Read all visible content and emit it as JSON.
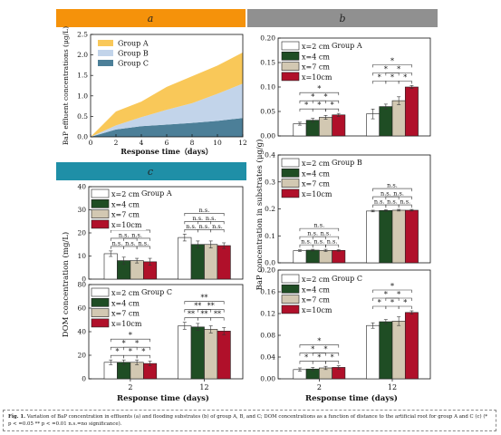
{
  "colors": {
    "orange": "#f5920a",
    "gray": "#909090",
    "teal": "#1f8fa7",
    "groupA": "#f9c859",
    "groupB": "#c2d4ea",
    "groupC": "#4c7f98",
    "bar1": "#ffffff",
    "bar2": "#1f4d24",
    "bar3": "#d2c8b2",
    "bar4": "#b0102a"
  },
  "panels": {
    "a": {
      "letter": "a"
    },
    "b": {
      "letter": "b"
    },
    "c": {
      "letter": "c"
    }
  },
  "chart_data": [
    {
      "id": "a",
      "type": "area",
      "x": [
        0,
        2,
        4,
        6,
        8,
        10,
        12
      ],
      "series": [
        {
          "name": "Group C",
          "values": [
            0.0,
            0.18,
            0.26,
            0.3,
            0.34,
            0.39,
            0.46
          ]
        },
        {
          "name": "Group B",
          "values": [
            0.0,
            0.28,
            0.48,
            0.66,
            0.82,
            1.05,
            1.3
          ]
        },
        {
          "name": "Group A",
          "values": [
            0.0,
            0.62,
            0.86,
            1.22,
            1.48,
            1.74,
            2.06
          ]
        }
      ],
      "legend": [
        "Group A",
        "Group B",
        "Group C"
      ],
      "xlabel": "Response time（days）",
      "ylabel": "BaP effluent concentrations (μg/L)",
      "xlim": [
        0,
        12
      ],
      "ylim": [
        0,
        2.5
      ],
      "xticks": [
        0,
        2,
        4,
        6,
        8,
        10,
        12
      ],
      "yticks": [
        0.0,
        0.5,
        1.0,
        1.5,
        2.0,
        2.5
      ]
    },
    {
      "id": "b1",
      "type": "bar",
      "categories": [
        "2",
        "12"
      ],
      "series": [
        {
          "name": "x=2 cm",
          "values": [
            0.025,
            0.045
          ]
        },
        {
          "name": "x=4 cm",
          "values": [
            0.032,
            0.06
          ]
        },
        {
          "name": "x=7 cm",
          "values": [
            0.038,
            0.072
          ]
        },
        {
          "name": "x=10cm",
          "values": [
            0.043,
            0.1
          ]
        }
      ],
      "errors": [
        [
          0.003,
          0.01
        ],
        [
          0.004,
          0.005
        ],
        [
          0.004,
          0.008
        ],
        [
          0.003,
          0.003
        ]
      ],
      "group_label": "Group A",
      "ylim": [
        0,
        0.2
      ],
      "yticks": [
        "0.00",
        "0.05",
        "0.10",
        "0.15",
        "0.20"
      ],
      "brackets": [
        {
          "g": 0,
          "a": 0,
          "b": 1,
          "level": 0,
          "t": "*"
        },
        {
          "g": 0,
          "a": 1,
          "b": 2,
          "level": 0,
          "t": "*"
        },
        {
          "g": 0,
          "a": 2,
          "b": 3,
          "level": 0,
          "t": "*"
        },
        {
          "g": 0,
          "a": 0,
          "b": 2,
          "level": 1,
          "t": "*"
        },
        {
          "g": 0,
          "a": 1,
          "b": 3,
          "level": 1,
          "t": "*"
        },
        {
          "g": 0,
          "a": 0,
          "b": 3,
          "level": 2,
          "t": "*"
        },
        {
          "g": 1,
          "a": 0,
          "b": 1,
          "level": 0,
          "t": "*"
        },
        {
          "g": 1,
          "a": 1,
          "b": 2,
          "level": 0,
          "t": "*"
        },
        {
          "g": 1,
          "a": 2,
          "b": 3,
          "level": 0,
          "t": "*"
        },
        {
          "g": 1,
          "a": 0,
          "b": 2,
          "level": 1,
          "t": "*"
        },
        {
          "g": 1,
          "a": 1,
          "b": 3,
          "level": 1,
          "t": "*"
        },
        {
          "g": 1,
          "a": 0,
          "b": 3,
          "level": 2,
          "t": "*"
        }
      ]
    },
    {
      "id": "b2",
      "type": "bar",
      "categories": [
        "2",
        "12"
      ],
      "series": [
        {
          "name": "x=2 cm",
          "values": [
            0.045,
            0.192
          ]
        },
        {
          "name": "x=4 cm",
          "values": [
            0.047,
            0.194
          ]
        },
        {
          "name": "x=7 cm",
          "values": [
            0.046,
            0.195
          ]
        },
        {
          "name": "x=10cm",
          "values": [
            0.046,
            0.195
          ]
        }
      ],
      "errors": [
        [
          0.003,
          0.003
        ],
        [
          0.003,
          0.003
        ],
        [
          0.004,
          0.003
        ],
        [
          0.003,
          0.003
        ]
      ],
      "group_label": "Group B",
      "ylim": [
        0,
        0.4
      ],
      "yticks": [
        "0.0",
        "0.1",
        "0.2",
        "0.3",
        "0.4"
      ],
      "brackets": [
        {
          "g": 0,
          "a": 0,
          "b": 1,
          "level": 0,
          "t": "n.s."
        },
        {
          "g": 0,
          "a": 1,
          "b": 2,
          "level": 0,
          "t": "n.s."
        },
        {
          "g": 0,
          "a": 2,
          "b": 3,
          "level": 0,
          "t": "n.s."
        },
        {
          "g": 0,
          "a": 0,
          "b": 2,
          "level": 1,
          "t": "n.s."
        },
        {
          "g": 0,
          "a": 1,
          "b": 3,
          "level": 1,
          "t": "n.s."
        },
        {
          "g": 0,
          "a": 0,
          "b": 3,
          "level": 2,
          "t": "n.s."
        },
        {
          "g": 1,
          "a": 0,
          "b": 1,
          "level": 0,
          "t": "n.s."
        },
        {
          "g": 1,
          "a": 1,
          "b": 2,
          "level": 0,
          "t": "n.s."
        },
        {
          "g": 1,
          "a": 2,
          "b": 3,
          "level": 0,
          "t": "n.s."
        },
        {
          "g": 1,
          "a": 0,
          "b": 2,
          "level": 1,
          "t": "n.s."
        },
        {
          "g": 1,
          "a": 1,
          "b": 3,
          "level": 1,
          "t": "n.s."
        },
        {
          "g": 1,
          "a": 0,
          "b": 3,
          "level": 2,
          "t": "n.s."
        }
      ]
    },
    {
      "id": "b3",
      "type": "bar",
      "categories": [
        "2",
        "12"
      ],
      "series": [
        {
          "name": "x=2 cm",
          "values": [
            0.017,
            0.098
          ]
        },
        {
          "name": "x=4 cm",
          "values": [
            0.018,
            0.105
          ]
        },
        {
          "name": "x=7 cm",
          "values": [
            0.02,
            0.106
          ]
        },
        {
          "name": "x=10cm",
          "values": [
            0.021,
            0.122
          ]
        }
      ],
      "errors": [
        [
          0.003,
          0.005
        ],
        [
          0.003,
          0.004
        ],
        [
          0.003,
          0.008
        ],
        [
          0.003,
          0.003
        ]
      ],
      "group_label": "Group C",
      "ylim": [
        0,
        0.2
      ],
      "yticks": [
        "0.00",
        "0.04",
        "0.08",
        "0.12",
        "0.16",
        "0.20"
      ],
      "brackets": [
        {
          "g": 0,
          "a": 0,
          "b": 1,
          "level": 0,
          "t": "*"
        },
        {
          "g": 0,
          "a": 1,
          "b": 2,
          "level": 0,
          "t": "*"
        },
        {
          "g": 0,
          "a": 2,
          "b": 3,
          "level": 0,
          "t": "*"
        },
        {
          "g": 0,
          "a": 0,
          "b": 2,
          "level": 1,
          "t": "*"
        },
        {
          "g": 0,
          "a": 1,
          "b": 3,
          "level": 1,
          "t": "*"
        },
        {
          "g": 0,
          "a": 0,
          "b": 3,
          "level": 2,
          "t": "*"
        },
        {
          "g": 1,
          "a": 0,
          "b": 1,
          "level": 0,
          "t": "*"
        },
        {
          "g": 1,
          "a": 1,
          "b": 2,
          "level": 0,
          "t": "*"
        },
        {
          "g": 1,
          "a": 2,
          "b": 3,
          "level": 0,
          "t": "*"
        },
        {
          "g": 1,
          "a": 0,
          "b": 2,
          "level": 1,
          "t": "*"
        },
        {
          "g": 1,
          "a": 1,
          "b": 3,
          "level": 1,
          "t": "*"
        },
        {
          "g": 1,
          "a": 0,
          "b": 3,
          "level": 2,
          "t": "*"
        }
      ]
    },
    {
      "id": "c1",
      "type": "bar",
      "categories": [
        "2",
        "12"
      ],
      "series": [
        {
          "name": "x=2 cm",
          "values": [
            11.0,
            18.0
          ]
        },
        {
          "name": "x=4 cm",
          "values": [
            8.0,
            15.0
          ]
        },
        {
          "name": "x=7 cm",
          "values": [
            8.0,
            15.0
          ]
        },
        {
          "name": "x=10cm",
          "values": [
            7.5,
            14.5
          ]
        }
      ],
      "errors": [
        [
          1.2,
          1.5
        ],
        [
          1.5,
          1.5
        ],
        [
          1.0,
          1.5
        ],
        [
          1.5,
          1.2
        ]
      ],
      "group_label": "Group A",
      "ylim": [
        0,
        40
      ],
      "yticks": [
        "0",
        "10",
        "20",
        "30",
        "40"
      ],
      "brackets": [
        {
          "g": 0,
          "a": 0,
          "b": 1,
          "level": 0,
          "t": "n.s."
        },
        {
          "g": 0,
          "a": 1,
          "b": 2,
          "level": 0,
          "t": "n.s."
        },
        {
          "g": 0,
          "a": 2,
          "b": 3,
          "level": 0,
          "t": "n.s."
        },
        {
          "g": 0,
          "a": 0,
          "b": 2,
          "level": 1,
          "t": "n.s."
        },
        {
          "g": 0,
          "a": 1,
          "b": 3,
          "level": 1,
          "t": "n.s."
        },
        {
          "g": 0,
          "a": 0,
          "b": 3,
          "level": 2,
          "t": "n.s."
        },
        {
          "g": 1,
          "a": 0,
          "b": 1,
          "level": 0,
          "t": "n.s."
        },
        {
          "g": 1,
          "a": 1,
          "b": 2,
          "level": 0,
          "t": "n.s."
        },
        {
          "g": 1,
          "a": 2,
          "b": 3,
          "level": 0,
          "t": "n.s."
        },
        {
          "g": 1,
          "a": 0,
          "b": 2,
          "level": 1,
          "t": "n.s."
        },
        {
          "g": 1,
          "a": 1,
          "b": 3,
          "level": 1,
          "t": "n.s."
        },
        {
          "g": 1,
          "a": 0,
          "b": 3,
          "level": 2,
          "t": "n.s."
        }
      ]
    },
    {
      "id": "c2",
      "type": "bar",
      "categories": [
        "2",
        "12"
      ],
      "series": [
        {
          "name": "x=2 cm",
          "values": [
            14.0,
            45.0
          ]
        },
        {
          "name": "x=4 cm",
          "values": [
            14.0,
            44.0
          ]
        },
        {
          "name": "x=7 cm",
          "values": [
            14.0,
            42.0
          ]
        },
        {
          "name": "x=10cm",
          "values": [
            13.0,
            40.5
          ]
        }
      ],
      "errors": [
        [
          2.0,
          3.0
        ],
        [
          2.0,
          3.0
        ],
        [
          2.0,
          3.0
        ],
        [
          2.0,
          3.0
        ]
      ],
      "group_label": "Group C",
      "ylim": [
        0,
        80
      ],
      "yticks": [
        "0",
        "20",
        "40",
        "60",
        "80"
      ],
      "brackets": [
        {
          "g": 0,
          "a": 0,
          "b": 1,
          "level": 0,
          "t": "*"
        },
        {
          "g": 0,
          "a": 1,
          "b": 2,
          "level": 0,
          "t": "*"
        },
        {
          "g": 0,
          "a": 2,
          "b": 3,
          "level": 0,
          "t": "*"
        },
        {
          "g": 0,
          "a": 0,
          "b": 2,
          "level": 1,
          "t": "*"
        },
        {
          "g": 0,
          "a": 1,
          "b": 3,
          "level": 1,
          "t": "*"
        },
        {
          "g": 0,
          "a": 0,
          "b": 3,
          "level": 2,
          "t": "*"
        },
        {
          "g": 1,
          "a": 0,
          "b": 1,
          "level": 0,
          "t": "**"
        },
        {
          "g": 1,
          "a": 1,
          "b": 2,
          "level": 0,
          "t": "**"
        },
        {
          "g": 1,
          "a": 2,
          "b": 3,
          "level": 0,
          "t": "**"
        },
        {
          "g": 1,
          "a": 0,
          "b": 2,
          "level": 1,
          "t": "**"
        },
        {
          "g": 1,
          "a": 1,
          "b": 3,
          "level": 1,
          "t": "**"
        },
        {
          "g": 1,
          "a": 0,
          "b": 3,
          "level": 2,
          "t": "**"
        }
      ]
    }
  ],
  "axis_labels": {
    "b_y": "BaP concentration in substrates (μg/g)",
    "b_x": "Response time (days)",
    "c_y": "DOM concentration (mg/L)",
    "c_x": "Response time (days)"
  },
  "caption": {
    "label": "Fig. 1.",
    "text": " Variation of BaP concentration in effluents (a) and flooding substrates (b) of group A, B, and C; DOM concentrations as a function of distance to the artificial root for group A and C (c) (* p < =0.05 ** p < =0.01 n.s.=no significance)."
  }
}
